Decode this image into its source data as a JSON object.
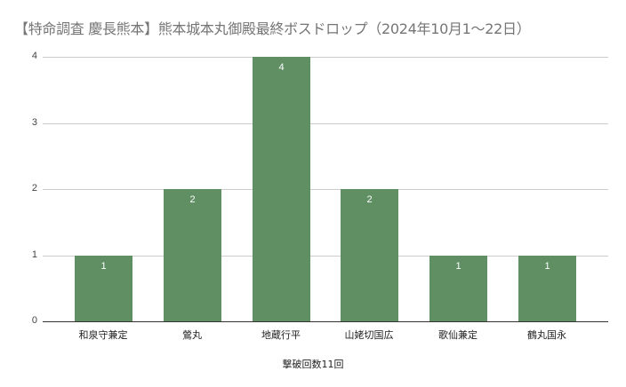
{
  "chart_data": {
    "type": "bar",
    "title": "【特命調査 慶長熊本】熊本城本丸御殿最終ボスドロップ（2024年10月1〜22日）",
    "categories": [
      "和泉守兼定",
      "鶯丸",
      "地蔵行平",
      "山姥切国広",
      "歌仙兼定",
      "鶴丸国永"
    ],
    "values": [
      1,
      2,
      4,
      2,
      1,
      1
    ],
    "data_labels": [
      "1",
      "2",
      "4",
      "2",
      "1",
      "1"
    ],
    "xlabel": "撃破回数11回",
    "ylabel": "",
    "ylim": [
      0,
      4
    ],
    "yticks": [
      "0",
      "1",
      "2",
      "3",
      "4"
    ],
    "grid": true,
    "legend": "none",
    "bar_color": "#5f8f63"
  }
}
